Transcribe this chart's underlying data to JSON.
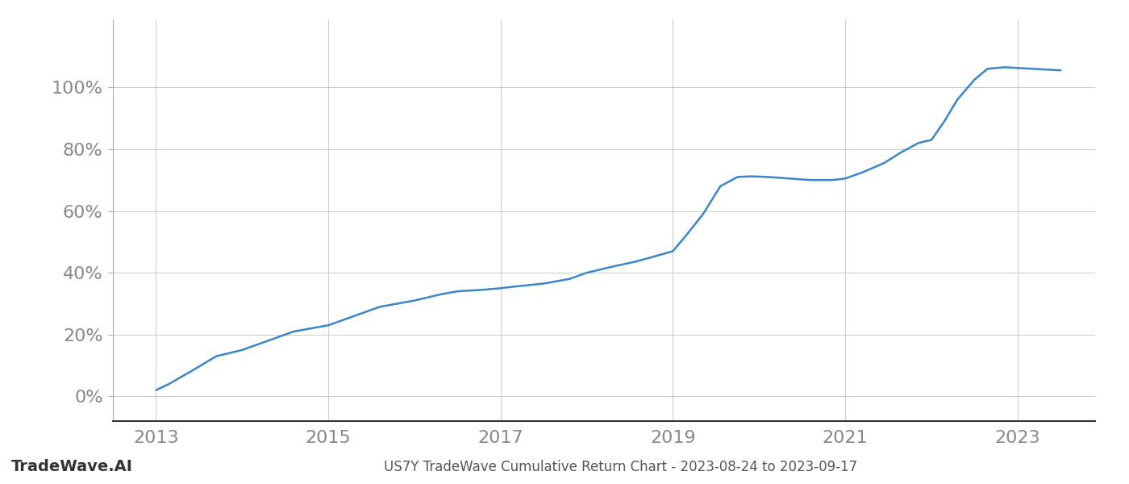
{
  "title": "US7Y TradeWave Cumulative Return Chart - 2023-08-24 to 2023-09-17",
  "watermark": "TradeWave.AI",
  "line_color": "#3a86c8",
  "line_width": 1.8,
  "background_color": "#ffffff",
  "grid_color": "#cccccc",
  "x_values": [
    2013.0,
    2013.15,
    2013.4,
    2013.7,
    2014.0,
    2014.3,
    2014.6,
    2015.0,
    2015.3,
    2015.6,
    2016.0,
    2016.3,
    2016.5,
    2016.8,
    2017.0,
    2017.15,
    2017.5,
    2017.8,
    2018.0,
    2018.3,
    2018.55,
    2018.75,
    2019.0,
    2019.15,
    2019.35,
    2019.55,
    2019.75,
    2019.9,
    2020.1,
    2020.35,
    2020.6,
    2020.85,
    2021.0,
    2021.2,
    2021.45,
    2021.65,
    2021.85,
    2022.0,
    2022.15,
    2022.3,
    2022.5,
    2022.65,
    2022.85,
    2023.5
  ],
  "y_values": [
    2.0,
    4.0,
    8.0,
    13.0,
    15.0,
    18.0,
    21.0,
    23.0,
    26.0,
    29.0,
    31.0,
    33.0,
    34.0,
    34.5,
    35.0,
    35.5,
    36.5,
    38.0,
    40.0,
    42.0,
    43.5,
    45.0,
    47.0,
    52.0,
    59.0,
    68.0,
    71.0,
    71.2,
    71.0,
    70.5,
    70.0,
    70.0,
    70.5,
    72.5,
    75.5,
    79.0,
    82.0,
    83.0,
    89.0,
    96.0,
    102.5,
    106.0,
    106.5,
    105.5
  ],
  "xlim": [
    2012.5,
    2023.9
  ],
  "ylim": [
    -8,
    122
  ],
  "yticks": [
    0,
    20,
    40,
    60,
    80,
    100
  ],
  "xticks": [
    2013,
    2015,
    2017,
    2019,
    2021,
    2023
  ],
  "tick_fontsize": 16,
  "title_fontsize": 12,
  "watermark_fontsize": 14
}
